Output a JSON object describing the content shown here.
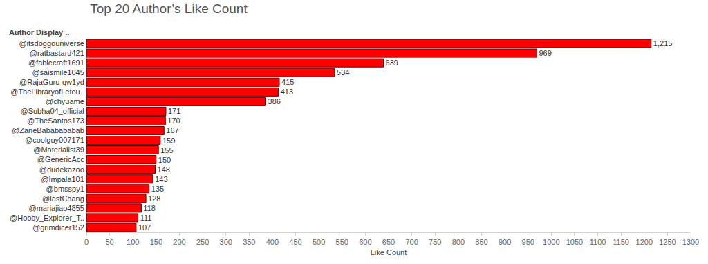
{
  "chart_data": {
    "type": "bar",
    "orientation": "horizontal",
    "title": "Top 20 Author’s Like Count",
    "y_label": "Author Display ..",
    "x_label": "Like Count",
    "categories": [
      "@itsdoggouniverse",
      "@ratbastard421",
      "@fablecraft1691",
      "@saismile1045",
      "@RajaGuru-qw1yd",
      "@TheLibraryofLetou..",
      "@chyuame",
      "@Subha04_official",
      "@TheSantos173",
      "@ZaneBababababab",
      "@coolguy007171",
      "@Materialist39",
      "@GenericAcc",
      "@dudekazoo",
      "@Impala101",
      "@bmsspy1",
      "@lastChang",
      "@mariajiao4855",
      "@Hobby_Explorer_T..",
      "@grimdicer152"
    ],
    "values": [
      1215,
      969,
      639,
      534,
      415,
      413,
      386,
      171,
      170,
      167,
      159,
      155,
      150,
      148,
      143,
      135,
      128,
      118,
      111,
      107
    ],
    "value_labels": [
      "1,215",
      "969",
      "639",
      "534",
      "415",
      "413",
      "386",
      "171",
      "170",
      "167",
      "159",
      "155",
      "150",
      "148",
      "143",
      "135",
      "128",
      "118",
      "111",
      "107"
    ],
    "color": "#ff0000",
    "xlim": [
      0,
      1300
    ],
    "xticks": [
      0,
      50,
      100,
      150,
      200,
      250,
      300,
      350,
      400,
      450,
      500,
      550,
      600,
      650,
      700,
      750,
      800,
      850,
      900,
      950,
      1000,
      1050,
      1100,
      1150,
      1200,
      1250,
      1300
    ],
    "grid": false,
    "data_labels": true
  }
}
